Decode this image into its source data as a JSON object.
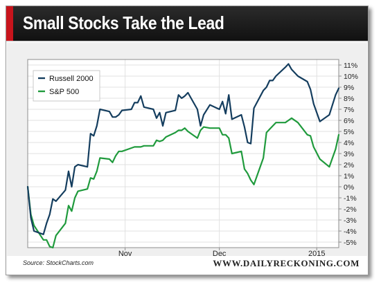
{
  "header": {
    "title": "Small Stocks Take the Lead"
  },
  "footer": {
    "source": "Source: StockCharts.com",
    "website": "WWW.DAILYRECKONING.COM"
  },
  "colors": {
    "russell": "#143d5e",
    "sp500": "#1f9a3c",
    "banner": "#1a1a1a",
    "accent": "#c8141c"
  },
  "chart_data": {
    "type": "line",
    "title": "Small Stocks Take the Lead",
    "xlabel": "",
    "ylabel": "",
    "x_ticks": [
      "Nov",
      "Dec",
      "2015"
    ],
    "y_ticks": [
      "11%",
      "10%",
      "9%",
      "8%",
      "7%",
      "6%",
      "5%",
      "4%",
      "3%",
      "2%",
      "1%",
      "0%",
      "-1%",
      "-2%",
      "-3%",
      "-4%",
      "-5%"
    ],
    "ylim": [
      -5.5,
      11.5
    ],
    "y_unit": "%",
    "grid": true,
    "legend_position": "top-left",
    "x": [
      "2014-10-01",
      "2014-10-02",
      "2014-10-03",
      "2014-10-06",
      "2014-10-07",
      "2014-10-08",
      "2014-10-09",
      "2014-10-10",
      "2014-10-13",
      "2014-10-14",
      "2014-10-15",
      "2014-10-16",
      "2014-10-17",
      "2014-10-20",
      "2014-10-21",
      "2014-10-22",
      "2014-10-23",
      "2014-10-24",
      "2014-10-27",
      "2014-10-28",
      "2014-10-29",
      "2014-10-30",
      "2014-10-31",
      "2014-11-03",
      "2014-11-04",
      "2014-11-05",
      "2014-11-06",
      "2014-11-07",
      "2014-11-10",
      "2014-11-11",
      "2014-11-12",
      "2014-11-13",
      "2014-11-14",
      "2014-11-17",
      "2014-11-18",
      "2014-11-19",
      "2014-11-20",
      "2014-11-21",
      "2014-11-24",
      "2014-11-25",
      "2014-11-26",
      "2014-11-28",
      "2014-12-01",
      "2014-12-02",
      "2014-12-03",
      "2014-12-04",
      "2014-12-05",
      "2014-12-08",
      "2014-12-09",
      "2014-12-10",
      "2014-12-11",
      "2014-12-12",
      "2014-12-15",
      "2014-12-16",
      "2014-12-17",
      "2014-12-18",
      "2014-12-19",
      "2014-12-22",
      "2014-12-23",
      "2014-12-24",
      "2014-12-26",
      "2014-12-29",
      "2014-12-30",
      "2014-12-31",
      "2015-01-02",
      "2015-01-05",
      "2015-01-06",
      "2015-01-07",
      "2015-01-08"
    ],
    "series": [
      {
        "name": "Russell 2000",
        "color": "#143d5e",
        "values": [
          0.0,
          -2.8,
          -4.0,
          -4.3,
          -3.3,
          -2.5,
          -1.1,
          -1.3,
          -0.3,
          1.4,
          0.0,
          1.8,
          2.0,
          1.8,
          4.8,
          4.6,
          5.5,
          7.0,
          6.8,
          6.3,
          6.3,
          6.5,
          6.9,
          7.0,
          7.6,
          7.6,
          8.2,
          7.2,
          7.0,
          6.2,
          6.7,
          5.5,
          6.7,
          6.9,
          8.3,
          8.0,
          8.2,
          8.5,
          7.0,
          5.5,
          6.5,
          7.4,
          7.0,
          7.7,
          6.6,
          8.3,
          6.1,
          6.5,
          5.4,
          4.0,
          3.9,
          7.1,
          8.7,
          9.0,
          9.6,
          9.6,
          10.0,
          10.8,
          11.1,
          10.6,
          10.0,
          9.5,
          8.8,
          7.5,
          5.9,
          6.5,
          7.4,
          8.3,
          8.9
        ]
      },
      {
        "name": "S&P 500",
        "color": "#1f9a3c",
        "values": [
          0.0,
          -2.5,
          -3.5,
          -4.8,
          -4.8,
          -5.4,
          -5.5,
          -4.4,
          -3.3,
          -1.7,
          -2.2,
          -1.0,
          -0.4,
          -0.2,
          0.8,
          0.7,
          1.4,
          2.6,
          2.5,
          2.2,
          2.8,
          3.2,
          3.2,
          3.5,
          3.6,
          3.6,
          3.6,
          3.7,
          3.7,
          4.2,
          4.1,
          4.2,
          4.5,
          4.9,
          5.1,
          5.1,
          5.3,
          5.0,
          4.4,
          5.1,
          5.4,
          5.3,
          5.3,
          4.7,
          4.7,
          4.4,
          3.0,
          3.2,
          1.6,
          1.2,
          0.6,
          0.2,
          2.6,
          4.9,
          5.2,
          5.5,
          5.8,
          5.8,
          6.0,
          6.2,
          5.8,
          4.7,
          4.6,
          3.6,
          2.5,
          1.8,
          2.6,
          3.4,
          4.7
        ]
      }
    ]
  }
}
